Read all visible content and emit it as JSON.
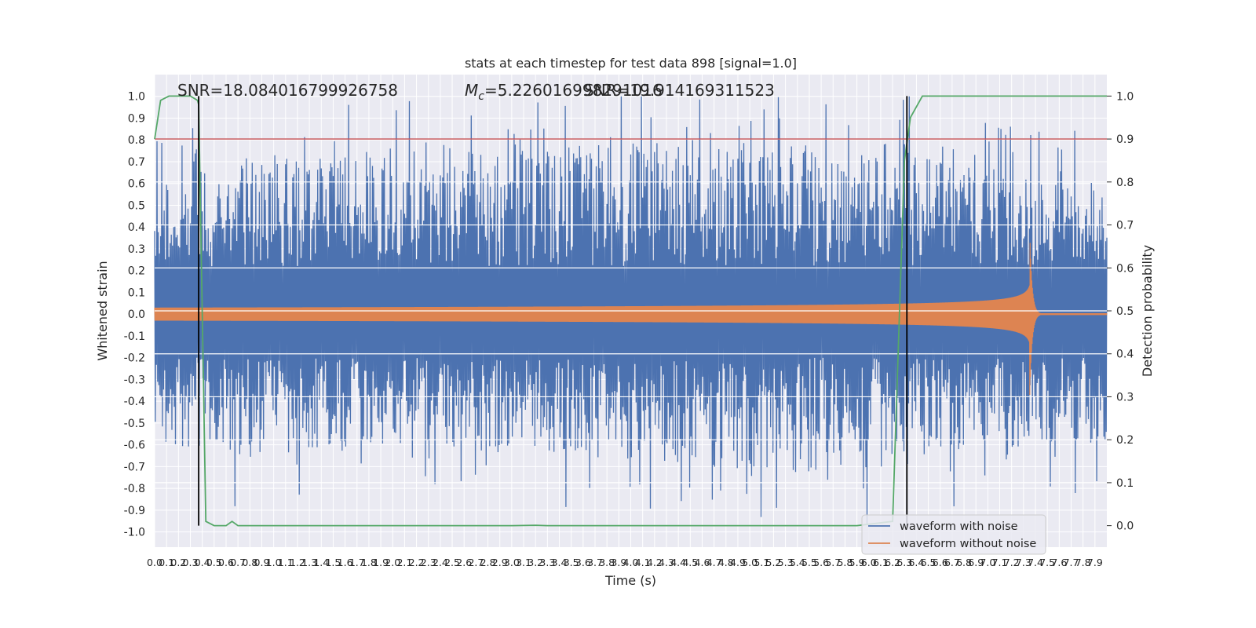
{
  "chart_data": {
    "type": "line",
    "title": "stats at each timestep for test data 898 [signal=1.0]",
    "xlabel": "Time (s)",
    "ylabel": "Whitened strain",
    "y2label": "Detection probability",
    "xlim": [
      0.0,
      8.0
    ],
    "ylim": [
      -1.07,
      1.1
    ],
    "y2lim": [
      -0.05,
      1.05
    ],
    "x_ticks": [
      "0.0",
      "0.1",
      "0.2",
      "0.3",
      "0.4",
      "0.5",
      "0.6",
      "0.7",
      "0.8",
      "0.9",
      "1.0",
      "1.1",
      "1.2",
      "1.3",
      "1.4",
      "1.5",
      "1.6",
      "1.7",
      "1.8",
      "1.9",
      "2.0",
      "2.1",
      "2.2",
      "2.3",
      "2.4",
      "2.5",
      "2.6",
      "2.7",
      "2.8",
      "2.9",
      "3.0",
      "3.1",
      "3.2",
      "3.3",
      "3.4",
      "3.5",
      "3.6",
      "3.7",
      "3.8",
      "3.9",
      "4.0",
      "4.1",
      "4.2",
      "4.3",
      "4.4",
      "4.5",
      "4.6",
      "4.7",
      "4.8",
      "4.9",
      "5.0",
      "5.1",
      "5.2",
      "5.3",
      "5.4",
      "5.5",
      "5.6",
      "5.7",
      "5.8",
      "5.9",
      "6.0",
      "6.1",
      "6.2",
      "6.3",
      "6.4",
      "6.5",
      "6.6",
      "6.7",
      "6.8",
      "6.9",
      "7.0",
      "7.1",
      "7.2",
      "7.3",
      "7.4",
      "7.5",
      "7.6",
      "7.7",
      "7.8",
      "7.9"
    ],
    "y_ticks": [
      "-1.0",
      "-0.9",
      "-0.8",
      "-0.7",
      "-0.6",
      "-0.5",
      "-0.4",
      "-0.3",
      "-0.2",
      "-0.1",
      "0.0",
      "0.1",
      "0.2",
      "0.3",
      "0.4",
      "0.5",
      "0.6",
      "0.7",
      "0.8",
      "0.9",
      "1.0"
    ],
    "y2_ticks": [
      "0.0",
      "0.1",
      "0.2",
      "0.3",
      "0.4",
      "0.5",
      "0.6",
      "0.7",
      "0.8",
      "0.9",
      "1.0"
    ],
    "annotations": {
      "snr": "SNR=18.084016799926758",
      "mc_symbol": "M",
      "mc_sub": "c",
      "mc_value": "=5.226016998291016",
      "overlap": "SNR=19.914169311523"
    },
    "grid": true,
    "legend": {
      "placement": "lower-right",
      "entries": [
        {
          "label": "waveform with noise",
          "color": "#4c72b0"
        },
        {
          "label": "waveform without noise",
          "color": "#dd8452"
        }
      ]
    },
    "threshold_y2": 0.9,
    "threshold_color": "#c44e52",
    "vertical_markers_x": [
      0.37,
      6.32
    ],
    "series": [
      {
        "kind": "noisy_strain",
        "color": "#4c72b0",
        "envelope_x": [
          0.0,
          0.5,
          1.0,
          2.0,
          3.0,
          4.0,
          5.0,
          6.0,
          6.5,
          7.0,
          7.3,
          7.5,
          8.0
        ],
        "envelope_upper": [
          0.58,
          0.62,
          0.74,
          0.75,
          0.78,
          0.8,
          0.76,
          0.8,
          0.78,
          0.74,
          0.64,
          0.6,
          0.62
        ],
        "envelope_lower": [
          -0.66,
          -0.62,
          -0.68,
          -0.62,
          -0.66,
          -0.67,
          -0.72,
          -0.74,
          -0.66,
          -0.62,
          -0.66,
          -0.6,
          -0.62
        ]
      },
      {
        "kind": "clean_chirp",
        "color": "#dd8452",
        "t_merge": 7.35,
        "amp_start": 0.03,
        "amp_peak": 0.42
      },
      {
        "kind": "detection_probability",
        "color": "#55a868",
        "x": [
          0.0,
          0.05,
          0.12,
          0.2,
          0.3,
          0.36,
          0.37,
          0.43,
          0.5,
          0.6,
          0.65,
          0.7,
          0.8,
          1.0,
          2.0,
          3.0,
          3.2,
          3.3,
          4.0,
          5.0,
          5.9,
          6.2,
          6.3,
          6.35,
          6.45,
          7.0,
          8.0
        ],
        "y": [
          0.9,
          0.99,
          1.0,
          1.0,
          1.0,
          0.99,
          0.98,
          0.01,
          0.0,
          0.0,
          0.01,
          0.0,
          0.0,
          0.0,
          0.0,
          0.0,
          0.001,
          0.0,
          0.0,
          0.0,
          0.0,
          0.01,
          0.85,
          0.95,
          1.0,
          1.0,
          1.0
        ]
      }
    ]
  }
}
